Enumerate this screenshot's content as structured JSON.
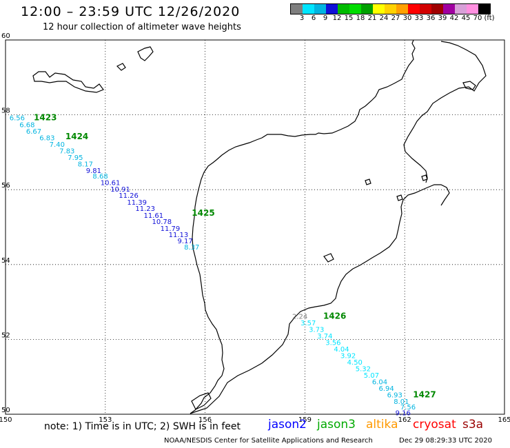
{
  "header": {
    "title": "12:00 – 23:59 UTC 12/26/2020",
    "subtitle": "12 hour collection of altimeter wave heights"
  },
  "legend_scale": {
    "colors": [
      "#7f7f7f",
      "#00e5ff",
      "#00b4e0",
      "#1010d8",
      "#00bb00",
      "#00dd00",
      "#00a000",
      "#ffff00",
      "#ffd200",
      "#ffa000",
      "#ff0000",
      "#d20000",
      "#a00000",
      "#a000a0",
      "#d8a0d8",
      "#ff90e0",
      "#000000"
    ],
    "labels": [
      "3",
      "6",
      "9",
      "12",
      "15",
      "18",
      "21",
      "24",
      "27",
      "30",
      "33",
      "36",
      "39",
      "42",
      "45",
      "70",
      "(ft)"
    ]
  },
  "axes": {
    "lon_labels": [
      "150",
      "153",
      "156",
      "159",
      "162",
      "165"
    ],
    "lat_labels": [
      "60",
      "58",
      "56",
      "54",
      "52",
      "50"
    ]
  },
  "tracks": [
    {
      "id": "1423",
      "color": "#008800",
      "lon": 150.85,
      "lat": 57.85
    },
    {
      "id": "1424",
      "color": "#008800",
      "lon": 151.8,
      "lat": 57.35
    },
    {
      "id": "1425",
      "color": "#008800",
      "lon": 155.6,
      "lat": 55.3
    },
    {
      "id": "1426",
      "color": "#008800",
      "lon": 159.55,
      "lat": 52.55
    },
    {
      "id": "1427",
      "color": "#008800",
      "lon": 162.25,
      "lat": 50.45
    }
  ],
  "observations": [
    {
      "value": "6.56",
      "color": "#00b4e0",
      "lon": 150.35,
      "lat": 57.85
    },
    {
      "value": "6.68",
      "color": "#00b4e0",
      "lon": 150.65,
      "lat": 57.67
    },
    {
      "value": "6.67",
      "color": "#00b4e0",
      "lon": 150.85,
      "lat": 57.5
    },
    {
      "value": "6.83",
      "color": "#00b4e0",
      "lon": 151.25,
      "lat": 57.32
    },
    {
      "value": "7.40",
      "color": "#00b4e0",
      "lon": 151.55,
      "lat": 57.15
    },
    {
      "value": "7.83",
      "color": "#00b4e0",
      "lon": 151.85,
      "lat": 56.97
    },
    {
      "value": "7.95",
      "color": "#00b4e0",
      "lon": 152.1,
      "lat": 56.8
    },
    {
      "value": "8.17",
      "color": "#00b4e0",
      "lon": 152.4,
      "lat": 56.62
    },
    {
      "value": "9.81",
      "color": "#1010d8",
      "lon": 152.65,
      "lat": 56.45
    },
    {
      "value": "8.68",
      "color": "#00b4e0",
      "lon": 152.85,
      "lat": 56.3
    },
    {
      "value": "10.61",
      "color": "#1010d8",
      "lon": 153.15,
      "lat": 56.12
    },
    {
      "value": "10.91",
      "color": "#1010d8",
      "lon": 153.45,
      "lat": 55.95
    },
    {
      "value": "11.26",
      "color": "#1010d8",
      "lon": 153.7,
      "lat": 55.78
    },
    {
      "value": "11.39",
      "color": "#1010d8",
      "lon": 153.95,
      "lat": 55.6
    },
    {
      "value": "11.23",
      "color": "#1010d8",
      "lon": 154.2,
      "lat": 55.43
    },
    {
      "value": "11.61",
      "color": "#1010d8",
      "lon": 154.45,
      "lat": 55.25
    },
    {
      "value": "10.78",
      "color": "#1010d8",
      "lon": 154.7,
      "lat": 55.08
    },
    {
      "value": "11.79",
      "color": "#1010d8",
      "lon": 154.95,
      "lat": 54.9
    },
    {
      "value": "11.13",
      "color": "#1010d8",
      "lon": 155.2,
      "lat": 54.73
    },
    {
      "value": "9.17",
      "color": "#1010d8",
      "lon": 155.4,
      "lat": 54.57
    },
    {
      "value": "8.37",
      "color": "#00b4e0",
      "lon": 155.6,
      "lat": 54.4
    },
    {
      "value": "2.24",
      "color": "#7f7f7f",
      "lon": 158.85,
      "lat": 52.55
    },
    {
      "value": "3.57",
      "color": "#00e5ff",
      "lon": 159.1,
      "lat": 52.38
    },
    {
      "value": "3.73",
      "color": "#00e5ff",
      "lon": 159.35,
      "lat": 52.2
    },
    {
      "value": "3.74",
      "color": "#00e5ff",
      "lon": 159.6,
      "lat": 52.03
    },
    {
      "value": "3.56",
      "color": "#00e5ff",
      "lon": 159.85,
      "lat": 51.85
    },
    {
      "value": "4.04",
      "color": "#00e5ff",
      "lon": 160.1,
      "lat": 51.68
    },
    {
      "value": "3.92",
      "color": "#00e5ff",
      "lon": 160.3,
      "lat": 51.5
    },
    {
      "value": "4.50",
      "color": "#00e5ff",
      "lon": 160.5,
      "lat": 51.33
    },
    {
      "value": "5.32",
      "color": "#00e5ff",
      "lon": 160.75,
      "lat": 51.15
    },
    {
      "value": "5.07",
      "color": "#00e5ff",
      "lon": 161.0,
      "lat": 50.98
    },
    {
      "value": "6.04",
      "color": "#00b4e0",
      "lon": 161.25,
      "lat": 50.8
    },
    {
      "value": "6.94",
      "color": "#00b4e0",
      "lon": 161.45,
      "lat": 50.63
    },
    {
      "value": "6.93",
      "color": "#00b4e0",
      "lon": 161.7,
      "lat": 50.45
    },
    {
      "value": "8.01",
      "color": "#00b4e0",
      "lon": 161.9,
      "lat": 50.28
    },
    {
      "value": "7.56",
      "color": "#00b4e0",
      "lon": 162.1,
      "lat": 50.13
    },
    {
      "value": "9.16",
      "color": "#1010d8",
      "lon": 161.95,
      "lat": 49.97
    }
  ],
  "legend": {
    "note": "note: 1) Time is in UTC; 2) SWH is in feet",
    "missions": [
      {
        "name": "jason2",
        "color": "#0000ff"
      },
      {
        "name": "jason3",
        "color": "#00aa00"
      },
      {
        "name": "altika",
        "color": "#ff9900"
      },
      {
        "name": "cryosat",
        "color": "#ff0000"
      },
      {
        "name": "s3a",
        "color": "#990000"
      }
    ]
  },
  "footer": {
    "source": "NOAA/NESDIS Center for Satellite Applications and Research",
    "timestamp": "Dec 29 08:29:33 UTC 2020"
  }
}
